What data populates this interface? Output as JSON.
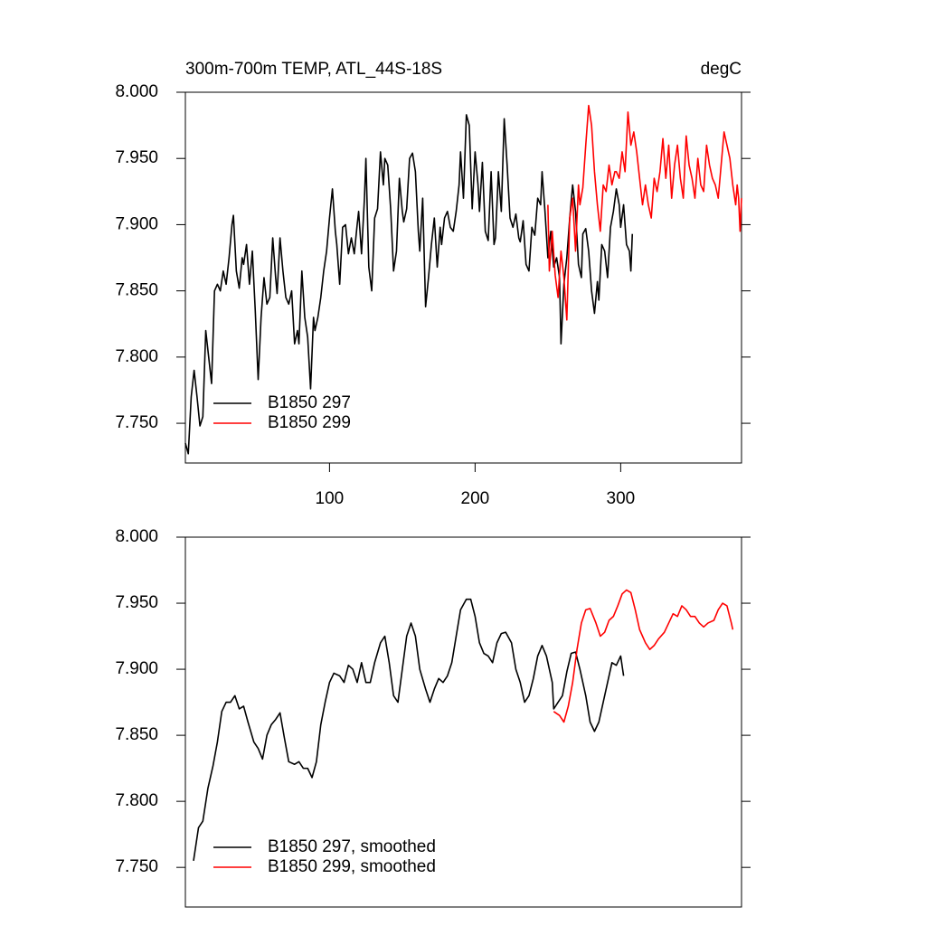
{
  "chart_data": [
    {
      "type": "line",
      "title": "300m-700m TEMP, ATL_44S-18S",
      "units_label": "degC",
      "xlim": [
        1,
        383
      ],
      "xticks": [
        100,
        200,
        300
      ],
      "ylim": [
        7.72,
        8.0
      ],
      "yticks": [
        {
          "value": 7.75,
          "label": "7.750"
        },
        {
          "value": 7.8,
          "label": "7.800"
        },
        {
          "value": 7.85,
          "label": "7.850"
        },
        {
          "value": 7.9,
          "label": "7.900"
        },
        {
          "value": 7.95,
          "label": "7.950"
        },
        {
          "value": 8.0,
          "label": "8.000"
        }
      ],
      "legend": "lower-left",
      "series": [
        {
          "name": "B1850 297",
          "color": "#000000",
          "x": [
            1,
            3,
            5,
            7,
            9,
            11,
            13,
            15,
            17,
            19,
            21,
            23,
            25,
            27,
            29,
            31,
            33,
            34,
            36,
            38,
            40,
            41,
            43,
            45,
            47,
            49,
            51,
            53,
            55,
            57,
            59,
            61,
            63,
            64,
            66,
            68,
            70,
            72,
            74,
            76,
            78,
            79,
            81,
            83,
            85,
            87,
            89,
            90,
            92,
            94,
            96,
            98,
            100,
            102,
            104,
            105,
            107,
            109,
            111,
            113,
            115,
            117,
            119,
            120,
            122,
            124,
            125,
            127,
            129,
            131,
            133,
            135,
            137,
            138,
            140,
            142,
            144,
            146,
            148,
            150,
            151,
            153,
            155,
            157,
            159,
            161,
            162,
            164,
            166,
            168,
            170,
            172,
            174,
            176,
            177,
            179,
            181,
            183,
            185,
            187,
            189,
            190,
            192,
            194,
            196,
            198,
            200,
            202,
            203,
            205,
            207,
            209,
            211,
            213,
            214,
            216,
            218,
            220,
            222,
            224,
            226,
            228,
            230,
            231,
            233,
            235,
            237,
            239,
            241,
            243,
            245,
            246,
            248,
            250,
            252,
            254,
            256,
            258,
            259,
            261,
            263,
            265,
            267,
            269,
            271,
            273,
            274,
            276,
            278,
            280,
            282,
            284,
            285,
            287,
            289,
            291,
            293,
            295,
            297,
            299,
            300,
            302,
            304,
            306,
            307,
            308
          ],
          "values": [
            7.735,
            7.727,
            7.77,
            7.79,
            7.77,
            7.748,
            7.755,
            7.82,
            7.8,
            7.78,
            7.85,
            7.855,
            7.85,
            7.865,
            7.855,
            7.875,
            7.9,
            7.907,
            7.865,
            7.852,
            7.875,
            7.87,
            7.885,
            7.855,
            7.88,
            7.835,
            7.783,
            7.83,
            7.86,
            7.84,
            7.845,
            7.89,
            7.86,
            7.848,
            7.89,
            7.865,
            7.845,
            7.84,
            7.85,
            7.81,
            7.82,
            7.81,
            7.865,
            7.83,
            7.815,
            7.776,
            7.83,
            7.82,
            7.83,
            7.845,
            7.865,
            7.88,
            7.905,
            7.927,
            7.895,
            7.885,
            7.855,
            7.898,
            7.9,
            7.878,
            7.89,
            7.878,
            7.9,
            7.91,
            7.878,
            7.92,
            7.95,
            7.868,
            7.85,
            7.905,
            7.912,
            7.955,
            7.93,
            7.95,
            7.945,
            7.912,
            7.865,
            7.88,
            7.935,
            7.91,
            7.902,
            7.912,
            7.95,
            7.954,
            7.94,
            7.895,
            7.88,
            7.92,
            7.838,
            7.86,
            7.885,
            7.905,
            7.868,
            7.898,
            7.885,
            7.905,
            7.91,
            7.898,
            7.895,
            7.91,
            7.93,
            7.955,
            7.92,
            7.983,
            7.975,
            7.912,
            7.955,
            7.93,
            7.91,
            7.947,
            7.895,
            7.888,
            7.94,
            7.885,
            7.89,
            7.94,
            7.91,
            7.98,
            7.945,
            7.905,
            7.898,
            7.908,
            7.89,
            7.887,
            7.903,
            7.87,
            7.865,
            7.898,
            7.892,
            7.92,
            7.915,
            7.94,
            7.91,
            7.875,
            7.895,
            7.868,
            7.875,
            7.86,
            7.81,
            7.855,
            7.875,
            7.905,
            7.93,
            7.91,
            7.87,
            7.86,
            7.893,
            7.897,
            7.88,
            7.85,
            7.833,
            7.857,
            7.843,
            7.885,
            7.88,
            7.86,
            7.898,
            7.91,
            7.927,
            7.915,
            7.898,
            7.915,
            7.885,
            7.88,
            7.865,
            7.893
          ]
        },
        {
          "name": "B1850 299",
          "color": "#ff0000",
          "x": [
            250,
            251,
            253,
            255,
            257,
            259,
            261,
            263,
            265,
            267,
            269,
            271,
            272,
            274,
            276,
            278,
            280,
            282,
            284,
            286,
            288,
            290,
            292,
            294,
            296,
            297,
            299,
            301,
            303,
            305,
            307,
            309,
            311,
            313,
            315,
            317,
            319,
            321,
            323,
            325,
            327,
            329,
            331,
            333,
            335,
            337,
            339,
            341,
            343,
            345,
            347,
            349,
            351,
            353,
            355,
            357,
            359,
            361,
            363,
            365,
            367,
            369,
            371,
            373,
            375,
            377,
            379,
            380,
            381,
            382,
            383
          ],
          "values": [
            7.915,
            7.865,
            7.895,
            7.862,
            7.845,
            7.88,
            7.86,
            7.828,
            7.905,
            7.92,
            7.88,
            7.93,
            7.915,
            7.928,
            7.96,
            7.99,
            7.975,
            7.94,
            7.915,
            7.895,
            7.93,
            7.925,
            7.945,
            7.93,
            7.94,
            7.94,
            7.935,
            7.955,
            7.94,
            7.985,
            7.96,
            7.97,
            7.955,
            7.935,
            7.915,
            7.93,
            7.915,
            7.905,
            7.935,
            7.925,
            7.94,
            7.965,
            7.935,
            7.96,
            7.92,
            7.945,
            7.96,
            7.935,
            7.92,
            7.967,
            7.945,
            7.935,
            7.92,
            7.95,
            7.93,
            7.925,
            7.96,
            7.945,
            7.935,
            7.93,
            7.92,
            7.945,
            7.97,
            7.96,
            7.95,
            7.93,
            7.915,
            7.93,
            7.92,
            7.895,
            7.92
          ]
        }
      ]
    },
    {
      "type": "line",
      "xlim": [
        1,
        383
      ],
      "ylim": [
        7.72,
        8.0
      ],
      "yticks": [
        {
          "value": 7.75,
          "label": "7.750"
        },
        {
          "value": 7.8,
          "label": "7.800"
        },
        {
          "value": 7.85,
          "label": "7.850"
        },
        {
          "value": 7.9,
          "label": "7.900"
        },
        {
          "value": 7.95,
          "label": "7.950"
        },
        {
          "value": 8.0,
          "label": "8.000"
        }
      ],
      "legend": "lower-left",
      "series": [
        {
          "name": "B1850 297, smoothed",
          "color": "#000000",
          "x": [
            6.6,
            10,
            13,
            16.5,
            20,
            23,
            26,
            29,
            32,
            35,
            38,
            41,
            44,
            48,
            51,
            54,
            57,
            60,
            63,
            66,
            69,
            72,
            76,
            79,
            82,
            85,
            88,
            91,
            94,
            97,
            100,
            103,
            107,
            110,
            113,
            116,
            119,
            122,
            125,
            128,
            131,
            135,
            138,
            141,
            144,
            147,
            150,
            153,
            156,
            159,
            162,
            166,
            169,
            172,
            175,
            178,
            181,
            184,
            187,
            190,
            194,
            197,
            200,
            203,
            206,
            209,
            212,
            215,
            218,
            221,
            225,
            228,
            231,
            234,
            237,
            240,
            243,
            246,
            249,
            253,
            254,
            257,
            260,
            263,
            266,
            269,
            272,
            276,
            279,
            282,
            285,
            288,
            291,
            294,
            297,
            300,
            302
          ],
          "values": [
            7.755,
            7.78,
            7.785,
            7.81,
            7.827,
            7.845,
            7.868,
            7.875,
            7.875,
            7.88,
            7.87,
            7.872,
            7.86,
            7.845,
            7.84,
            7.832,
            7.85,
            7.858,
            7.862,
            7.867,
            7.848,
            7.83,
            7.828,
            7.83,
            7.825,
            7.825,
            7.818,
            7.83,
            7.858,
            7.875,
            7.89,
            7.897,
            7.895,
            7.89,
            7.903,
            7.9,
            7.89,
            7.905,
            7.89,
            7.89,
            7.905,
            7.92,
            7.925,
            7.905,
            7.88,
            7.875,
            7.9,
            7.925,
            7.935,
            7.925,
            7.9,
            7.885,
            7.875,
            7.885,
            7.893,
            7.89,
            7.895,
            7.905,
            7.925,
            7.945,
            7.953,
            7.953,
            7.94,
            7.92,
            7.912,
            7.91,
            7.905,
            7.92,
            7.927,
            7.928,
            7.92,
            7.9,
            7.89,
            7.875,
            7.88,
            7.893,
            7.91,
            7.918,
            7.91,
            7.89,
            7.87,
            7.875,
            7.88,
            7.898,
            7.912,
            7.913,
            7.9,
            7.88,
            7.86,
            7.853,
            7.86,
            7.875,
            7.89,
            7.905,
            7.903,
            7.91,
            7.895
          ]
        },
        {
          "name": "B1850 299, smoothed",
          "color": "#ff0000",
          "x": [
            254,
            258,
            261,
            264,
            267,
            270,
            273,
            276,
            279,
            283,
            286,
            289,
            292,
            295,
            298,
            301,
            304,
            307,
            310,
            313,
            317,
            320,
            323,
            326,
            330,
            333,
            336,
            339,
            342,
            345,
            348,
            351,
            354,
            357,
            360,
            364,
            367,
            370,
            373,
            376,
            377
          ],
          "values": [
            7.868,
            7.865,
            7.86,
            7.872,
            7.89,
            7.915,
            7.935,
            7.945,
            7.946,
            7.935,
            7.925,
            7.928,
            7.937,
            7.94,
            7.948,
            7.957,
            7.96,
            7.958,
            7.945,
            7.93,
            7.92,
            7.915,
            7.918,
            7.923,
            7.928,
            7.935,
            7.942,
            7.94,
            7.948,
            7.945,
            7.94,
            7.94,
            7.935,
            7.932,
            7.935,
            7.937,
            7.945,
            7.95,
            7.948,
            7.935,
            7.93
          ]
        }
      ]
    }
  ]
}
